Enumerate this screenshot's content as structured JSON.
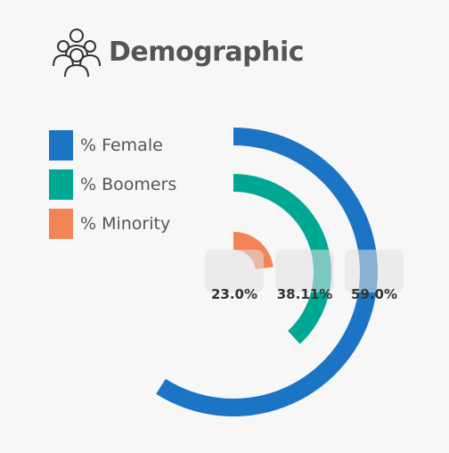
{
  "page": {
    "title": "Demographic",
    "header_icon": "people-group-icon"
  },
  "chart_data": {
    "type": "radial-bar",
    "title": "Demographic",
    "max": 100,
    "series": [
      {
        "name": "% Female",
        "value": 59.0,
        "label": "59.0%",
        "color": "#1b75c4"
      },
      {
        "name": "% Boomers",
        "value": 38.11,
        "label": "38.11%",
        "color": "#00a894"
      },
      {
        "name": "% Minority",
        "value": 23.0,
        "label": "23.0%",
        "color": "#f28457"
      }
    ],
    "legend_position": "top-left"
  }
}
